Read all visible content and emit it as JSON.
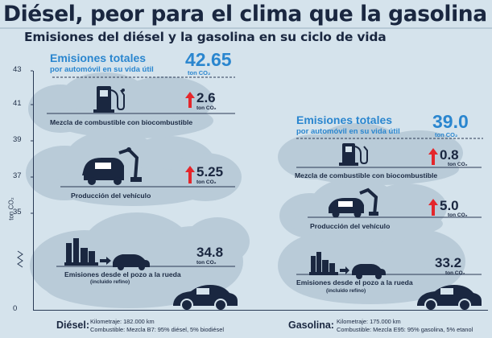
{
  "title": "Diésel, peor para el clima que la gasolina",
  "subtitle": "Emisiones del diésel y la gasolina en su ciclo de vida",
  "colors": {
    "accent": "#2a86cf",
    "dark": "#1a2740",
    "cloud": "#b9cbd8",
    "arrow": "#e4262b",
    "background": "#d5e3ec"
  },
  "axis": {
    "label": "ton CO₂",
    "ticks": [
      "43",
      "41",
      "39",
      "37",
      "35",
      "0"
    ]
  },
  "chart_data": {
    "type": "bar",
    "stacked": true,
    "title": "Diésel, peor para el clima que la gasolina",
    "subtitle": "Emisiones del diésel y la gasolina en su ciclo de vida",
    "ylabel": "ton CO₂",
    "ylim": [
      0,
      43
    ],
    "y_axis_break": true,
    "categories": [
      "Diésel",
      "Gasolina"
    ],
    "series": [
      {
        "name": "Emisiones desde el pozo a la rueda",
        "values": [
          34.8,
          33.2
        ]
      },
      {
        "name": "Producción del vehículo",
        "values": [
          5.25,
          5.0
        ]
      },
      {
        "name": "Mezcla de combustible con biocombustible",
        "values": [
          2.6,
          0.8
        ]
      }
    ],
    "totals": [
      42.65,
      39.0
    ]
  },
  "diesel": {
    "total_label": "Emisiones totales",
    "total_sublabel": "por automóvil en su vida útil",
    "total_value": "42.65",
    "total_unit": "ton CO₂",
    "segments": [
      {
        "label": "Mezcla de combustible con biocombustible",
        "value": "2.6",
        "unit": "ton CO₂",
        "icon": "fuel-pump-icon",
        "arrow": true
      },
      {
        "label": "Producción del vehículo",
        "value": "5.25",
        "unit": "ton CO₂",
        "icon": "factory-robot-icon",
        "arrow": true
      },
      {
        "label": "Emisiones desde el pozo a la rueda",
        "sublabel": "(incluido refino)",
        "value": "34.8",
        "unit": "ton CO₂",
        "icon": "refinery-to-car-icon",
        "arrow": false
      }
    ],
    "name": "Diésel:",
    "km": "Kilometraje: 182.000 km",
    "fuel": "Combustible: Mezcla B7: 95% diésel, 5% biodiésel"
  },
  "gasolina": {
    "total_label": "Emisiones totales",
    "total_sublabel": "por automóvil en su vida útil",
    "total_value": "39.0",
    "total_unit": "ton CO₂",
    "segments": [
      {
        "label": "Mezcla de combustible con biocombustible",
        "value": "0.8",
        "unit": "ton CO₂",
        "icon": "fuel-pump-icon",
        "arrow": true
      },
      {
        "label": "Producción del vehículo",
        "value": "5.0",
        "unit": "ton CO₂",
        "icon": "factory-robot-icon",
        "arrow": true
      },
      {
        "label": "Emisiones desde el pozo a la rueda",
        "sublabel": "(incluido refino)",
        "value": "33.2",
        "unit": "ton CO₂",
        "icon": "refinery-to-car-icon",
        "arrow": false
      }
    ],
    "name": "Gasolina:",
    "km": "Kilometraje: 175.000 km",
    "fuel": "Combustible: Mezcla E95: 95% gasolina, 5% etanol"
  }
}
